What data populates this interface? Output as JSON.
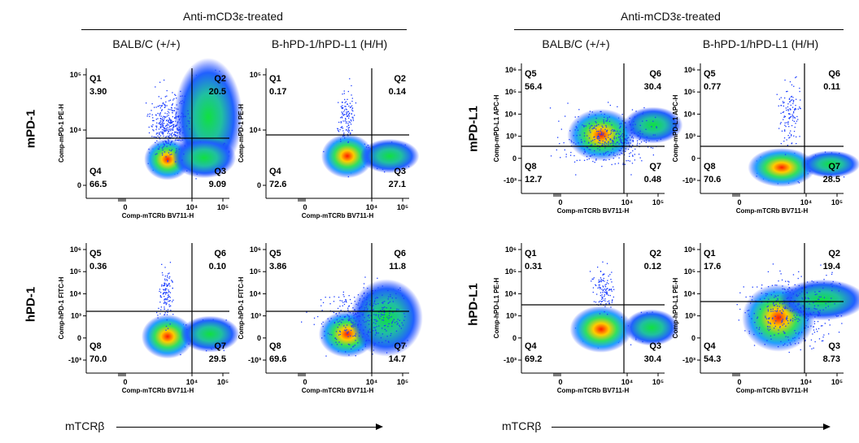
{
  "page": {
    "group_titles": [
      "Anti-mCD3ε-treated",
      "Anti-mCD3ε-treated"
    ],
    "column_headers": [
      "BALB/C (+/+)",
      "B-hPD-1/hPD-L1 (H/H)",
      "BALB/C (+/+)",
      "B-hPD-1/hPD-L1 (H/H)"
    ],
    "row_labels": [
      "mPD-1",
      "hPD-1",
      "mPD-L1",
      "hPD-L1"
    ],
    "x_axis_labels": [
      "mTCRβ",
      "mTCRβ"
    ]
  },
  "chart_data": [
    {
      "type": "scatter",
      "ylabel": "Comp-mPD-1 PE-H",
      "xlabel": "Comp-mTCRb BV711-H",
      "x_ticks": [
        "0",
        "10⁴",
        "10⁵"
      ],
      "y_ticks": [
        "10⁵",
        "10⁴",
        "0"
      ],
      "gates": [
        {
          "name": "Q1",
          "value": "3.90"
        },
        {
          "name": "Q2",
          "value": "20.5"
        },
        {
          "name": "Q4",
          "value": "66.5"
        },
        {
          "name": "Q3",
          "value": "9.09"
        }
      ]
    },
    {
      "type": "scatter",
      "ylabel": "Comp-mPD-1 PE-H",
      "xlabel": "Comp-mTCRb BV711-H",
      "x_ticks": [
        "0",
        "10⁴",
        "10⁵"
      ],
      "y_ticks": [
        "10⁵",
        "10⁴",
        "0"
      ],
      "gates": [
        {
          "name": "Q1",
          "value": "0.17"
        },
        {
          "name": "Q2",
          "value": "0.14"
        },
        {
          "name": "Q4",
          "value": "72.6"
        },
        {
          "name": "Q3",
          "value": "27.1"
        }
      ]
    },
    {
      "type": "scatter",
      "ylabel": "Comp-hPD-1 FITC-H",
      "xlabel": "Comp-mTCRb BV711-H",
      "x_ticks": [
        "0",
        "10⁴",
        "10⁵"
      ],
      "y_ticks": [
        "10⁶",
        "10⁵",
        "10⁴",
        "10³",
        "0",
        "-10³"
      ],
      "gates": [
        {
          "name": "Q5",
          "value": "0.36"
        },
        {
          "name": "Q6",
          "value": "0.10"
        },
        {
          "name": "Q8",
          "value": "70.0"
        },
        {
          "name": "Q7",
          "value": "29.5"
        }
      ]
    },
    {
      "type": "scatter",
      "ylabel": "Comp-hPD-1 FITC-H",
      "xlabel": "Comp-mTCRb BV711-H",
      "x_ticks": [
        "0",
        "10⁴",
        "10⁵"
      ],
      "y_ticks": [
        "10⁶",
        "10⁵",
        "10⁴",
        "10³",
        "0",
        "-10³"
      ],
      "gates": [
        {
          "name": "Q5",
          "value": "3.86"
        },
        {
          "name": "Q6",
          "value": "11.8"
        },
        {
          "name": "Q8",
          "value": "69.6"
        },
        {
          "name": "Q7",
          "value": "14.7"
        }
      ]
    },
    {
      "type": "scatter",
      "ylabel": "Comp-mPD-L1 APC-H",
      "xlabel": "Comp-mTCRb BV711-H",
      "x_ticks": [
        "0",
        "10⁴",
        "10⁵"
      ],
      "y_ticks": [
        "10⁶",
        "10⁵",
        "10⁴",
        "10³",
        "0",
        "-10³"
      ],
      "gates": [
        {
          "name": "Q5",
          "value": "56.4"
        },
        {
          "name": "Q6",
          "value": "30.4"
        },
        {
          "name": "Q8",
          "value": "12.7"
        },
        {
          "name": "Q7",
          "value": "0.48"
        }
      ]
    },
    {
      "type": "scatter",
      "ylabel": "Comp-mPD-L1 APC-H",
      "xlabel": "Comp-mTCRb BV711-H",
      "x_ticks": [
        "0",
        "10⁴",
        "10⁵"
      ],
      "y_ticks": [
        "10⁶",
        "10⁵",
        "10⁴",
        "10³",
        "0",
        "-10³"
      ],
      "gates": [
        {
          "name": "Q5",
          "value": "0.77"
        },
        {
          "name": "Q6",
          "value": "0.11"
        },
        {
          "name": "Q8",
          "value": "70.6"
        },
        {
          "name": "Q7",
          "value": "28.5"
        }
      ]
    },
    {
      "type": "scatter",
      "ylabel": "Comp-hPD-L1 PE-H",
      "xlabel": "Comp-mTCRb BV711-H",
      "x_ticks": [
        "0",
        "10⁴",
        "10⁵"
      ],
      "y_ticks": [
        "10⁶",
        "10⁵",
        "10⁴",
        "10³",
        "0",
        "-10³"
      ],
      "gates": [
        {
          "name": "Q1",
          "value": "0.31"
        },
        {
          "name": "Q2",
          "value": "0.12"
        },
        {
          "name": "Q4",
          "value": "69.2"
        },
        {
          "name": "Q3",
          "value": "30.4"
        }
      ]
    },
    {
      "type": "scatter",
      "ylabel": "Comp-hPD-L1 PE-H",
      "xlabel": "Comp-mTCRb BV711-H",
      "x_ticks": [
        "0",
        "10⁴",
        "10⁵"
      ],
      "y_ticks": [
        "10⁶",
        "10⁵",
        "10⁴",
        "10³",
        "0",
        "-10³"
      ],
      "gates": [
        {
          "name": "Q1",
          "value": "17.6"
        },
        {
          "name": "Q2",
          "value": "19.4"
        },
        {
          "name": "Q4",
          "value": "54.3"
        },
        {
          "name": "Q3",
          "value": "8.73"
        }
      ]
    }
  ]
}
